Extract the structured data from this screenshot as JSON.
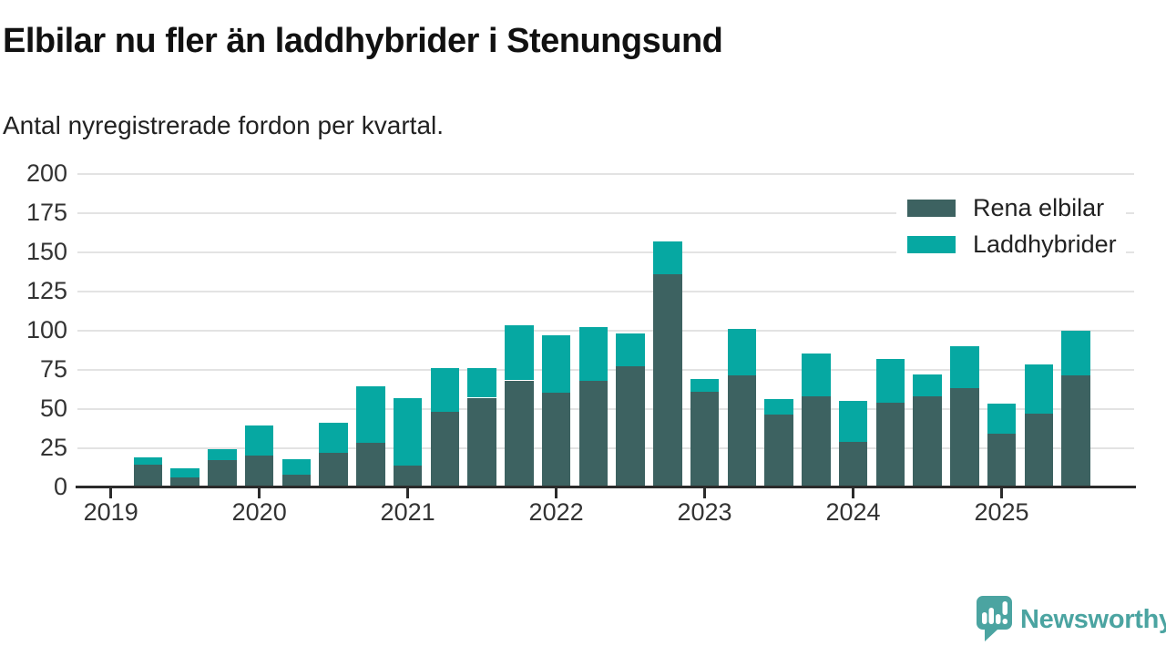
{
  "header": {
    "title": "Elbilar nu fler än laddhybrider i Stenungsund",
    "subtitle": "Antal nyregistrerade fordon per kvartal."
  },
  "chart_data": {
    "type": "bar",
    "stacked": true,
    "title": "Elbilar nu fler än laddhybrider i Stenungsund",
    "subtitle": "Antal nyregistrerade fordon per kvartal.",
    "categories": [
      "2019 Q1",
      "2019 Q2",
      "2019 Q3",
      "2019 Q4",
      "2020 Q1",
      "2020 Q2",
      "2020 Q3",
      "2020 Q4",
      "2021 Q1",
      "2021 Q2",
      "2021 Q3",
      "2021 Q4",
      "2022 Q1",
      "2022 Q2",
      "2022 Q3",
      "2022 Q4",
      "2023 Q1",
      "2023 Q2",
      "2023 Q3",
      "2023 Q4",
      "2024 Q1",
      "2024 Q2",
      "2024 Q3",
      "2024 Q4",
      "2025 Q1",
      "2025 Q2",
      "2025 Q3"
    ],
    "series": [
      {
        "name": "Rena elbilar",
        "color": "#3d6261",
        "values": [
          0,
          14,
          6,
          17,
          20,
          8,
          22,
          28,
          14,
          48,
          57,
          68,
          60,
          68,
          77,
          136,
          61,
          71,
          46,
          58,
          29,
          54,
          58,
          63,
          34,
          47,
          71
        ]
      },
      {
        "name": "Laddhybrider",
        "color": "#06a8a2",
        "values": [
          0,
          5,
          6,
          7,
          19,
          10,
          19,
          36,
          43,
          28,
          19,
          35,
          37,
          34,
          21,
          21,
          8,
          30,
          10,
          27,
          26,
          28,
          14,
          27,
          19,
          31,
          29
        ]
      }
    ],
    "x_tick_labels": [
      "2019",
      "2020",
      "2021",
      "2022",
      "2023",
      "2024",
      "2025"
    ],
    "y_ticks": [
      0,
      25,
      50,
      75,
      100,
      125,
      150,
      175,
      200
    ],
    "ylim": [
      0,
      200
    ],
    "xlabel": "",
    "ylabel": "",
    "grid": "horizontal",
    "gridline_color": "#e3e3e3",
    "axis_color": "#2b2b2b",
    "tick_label_color": "#333333",
    "legend_position": "top-right"
  },
  "branding": {
    "logo_text": "Newsworthy",
    "logo_color": "#4ba4a1"
  }
}
